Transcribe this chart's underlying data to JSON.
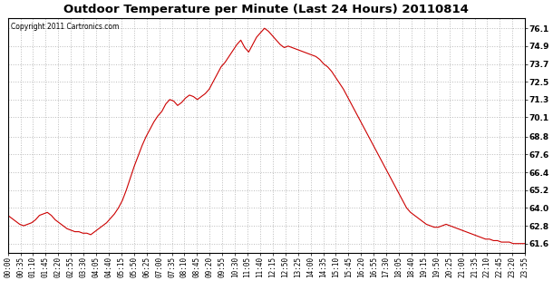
{
  "title": "Outdoor Temperature per Minute (Last 24 Hours) 20110814",
  "copyright_text": "Copyright 2011 Cartronics.com",
  "line_color": "#cc0000",
  "bg_color": "#ffffff",
  "grid_color": "#bbbbbb",
  "yticks": [
    61.6,
    62.8,
    64.0,
    65.2,
    66.4,
    67.6,
    68.8,
    70.1,
    71.3,
    72.5,
    73.7,
    74.9,
    76.1
  ],
  "ylim": [
    61.0,
    76.8
  ],
  "xlim_max": 41,
  "xtick_labels": [
    "00:00",
    "00:35",
    "01:10",
    "01:45",
    "02:20",
    "02:55",
    "03:30",
    "04:05",
    "04:40",
    "05:15",
    "05:50",
    "06:25",
    "07:00",
    "07:35",
    "08:10",
    "08:45",
    "09:20",
    "09:55",
    "10:30",
    "11:05",
    "11:40",
    "12:15",
    "12:50",
    "13:25",
    "14:00",
    "14:35",
    "15:10",
    "15:45",
    "16:20",
    "16:55",
    "17:30",
    "18:05",
    "18:40",
    "19:15",
    "19:50",
    "20:25",
    "21:00",
    "21:35",
    "22:10",
    "22:45",
    "23:20",
    "23:55"
  ],
  "temperature_profile": [
    63.5,
    63.3,
    63.1,
    62.9,
    62.8,
    62.9,
    63.0,
    63.2,
    63.5,
    63.6,
    63.7,
    63.5,
    63.2,
    63.0,
    62.8,
    62.6,
    62.5,
    62.4,
    62.4,
    62.3,
    62.3,
    62.2,
    62.4,
    62.6,
    62.8,
    63.0,
    63.3,
    63.6,
    64.0,
    64.5,
    65.2,
    66.0,
    66.8,
    67.5,
    68.2,
    68.8,
    69.3,
    69.8,
    70.2,
    70.5,
    71.0,
    71.3,
    71.2,
    70.9,
    71.1,
    71.4,
    71.6,
    71.5,
    71.3,
    71.5,
    71.7,
    72.0,
    72.5,
    73.0,
    73.5,
    73.8,
    74.2,
    74.6,
    75.0,
    75.3,
    74.8,
    74.5,
    75.0,
    75.5,
    75.8,
    76.1,
    75.9,
    75.6,
    75.3,
    75.0,
    74.8,
    74.9,
    74.8,
    74.7,
    74.6,
    74.5,
    74.4,
    74.3,
    74.2,
    74.0,
    73.7,
    73.5,
    73.2,
    72.8,
    72.4,
    72.0,
    71.5,
    71.0,
    70.5,
    70.0,
    69.5,
    69.0,
    68.5,
    68.0,
    67.5,
    67.0,
    66.5,
    66.0,
    65.5,
    65.0,
    64.5,
    64.0,
    63.7,
    63.5,
    63.3,
    63.1,
    62.9,
    62.8,
    62.7,
    62.7,
    62.8,
    62.9,
    62.8,
    62.7,
    62.6,
    62.5,
    62.4,
    62.3,
    62.2,
    62.1,
    62.0,
    61.9,
    61.9,
    61.8,
    61.8,
    61.7,
    61.7,
    61.7,
    61.6,
    61.6,
    61.6,
    61.6
  ]
}
